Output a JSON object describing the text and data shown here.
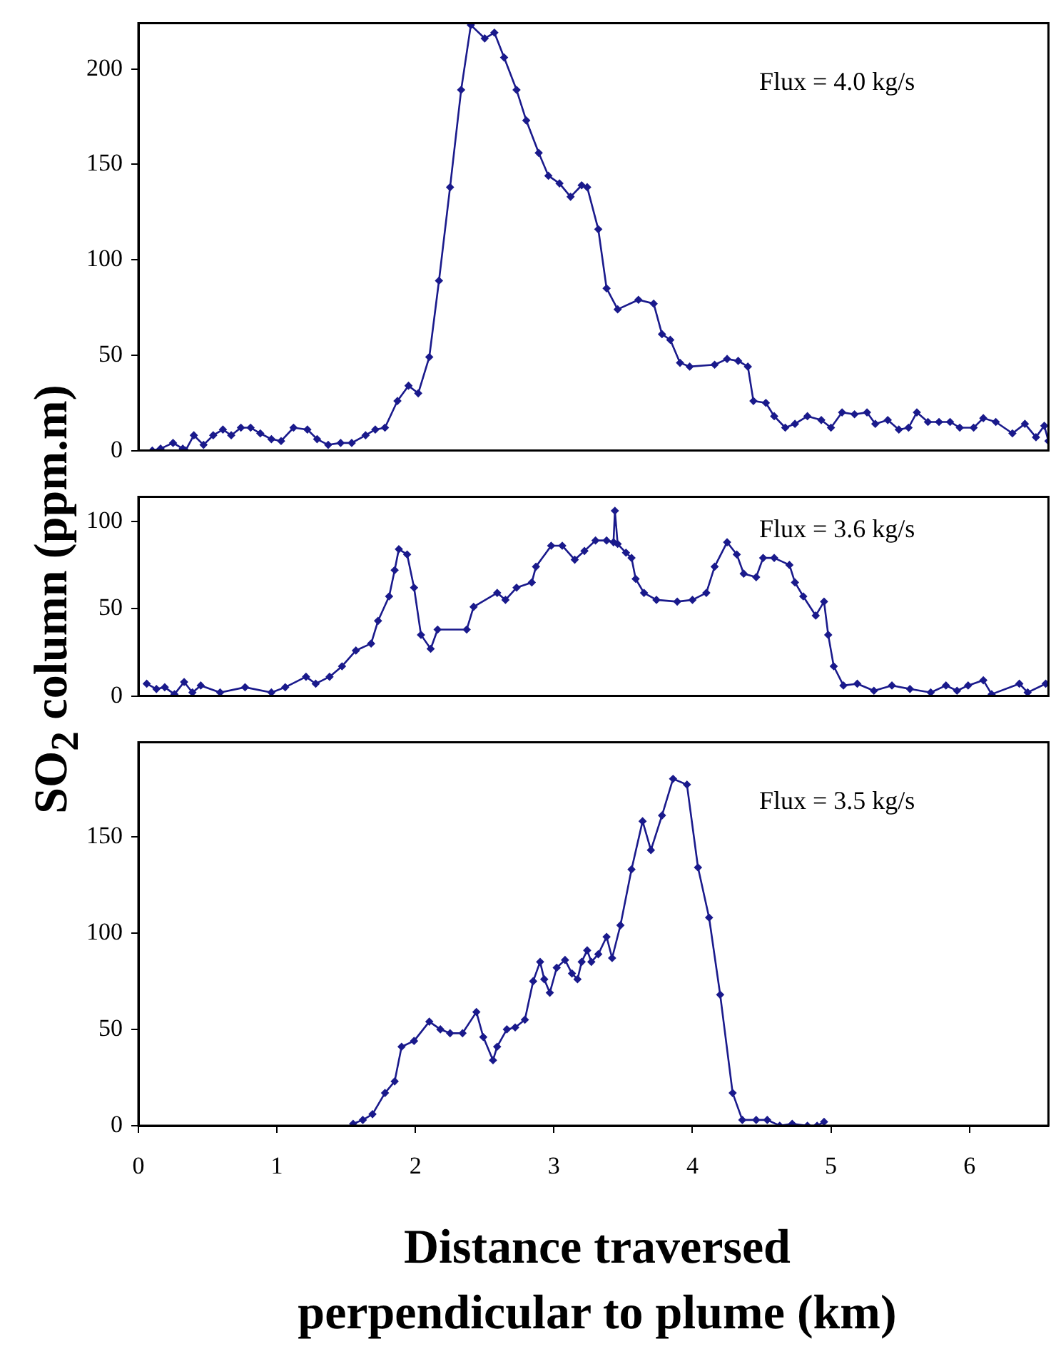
{
  "chart_data": [
    {
      "type": "line",
      "annotations": [
        "Flux = 4.0 kg/s"
      ],
      "marker": "diamond",
      "line_style": "solid",
      "grid": false,
      "tick_labels": "y",
      "xlim": [
        0,
        6.57
      ],
      "xticks": [
        0,
        1,
        2,
        3,
        4,
        5,
        6
      ],
      "ylim": [
        0,
        224
      ],
      "yticks": [
        0,
        50,
        100,
        150,
        200
      ],
      "x": [
        0.1,
        0.16,
        0.25,
        0.32,
        0.34,
        0.4,
        0.47,
        0.54,
        0.61,
        0.67,
        0.74,
        0.81,
        0.88,
        0.96,
        1.03,
        1.12,
        1.22,
        1.29,
        1.37,
        1.46,
        1.54,
        1.64,
        1.71,
        1.78,
        1.87,
        1.95,
        2.02,
        2.1,
        2.17,
        2.25,
        2.33,
        2.4,
        2.5,
        2.57,
        2.64,
        2.73,
        2.8,
        2.89,
        2.96,
        3.04,
        3.12,
        3.2,
        3.24,
        3.32,
        3.38,
        3.46,
        3.61,
        3.72,
        3.78,
        3.84,
        3.91,
        3.98,
        4.16,
        4.25,
        4.33,
        4.4,
        4.44,
        4.53,
        4.59,
        4.67,
        4.74,
        4.83,
        4.93,
        5.0,
        5.08,
        5.17,
        5.26,
        5.32,
        5.41,
        5.49,
        5.56,
        5.62,
        5.7,
        5.78,
        5.86,
        5.93,
        6.03,
        6.1,
        6.19,
        6.31,
        6.4,
        6.48,
        6.54,
        6.57
      ],
      "series": [
        {
          "color": "#1a1a8c",
          "values": [
            0,
            1,
            4,
            1,
            0,
            8,
            3,
            8,
            11,
            8,
            12,
            12,
            9,
            6,
            5,
            12,
            11,
            6,
            3,
            4,
            4,
            8,
            11,
            12,
            26,
            34,
            30,
            49,
            89,
            138,
            189,
            223,
            216,
            219,
            206,
            189,
            173,
            156,
            144,
            140,
            133,
            139,
            138,
            116,
            85,
            74,
            79,
            77,
            61,
            58,
            46,
            44,
            45,
            48,
            47,
            44,
            26,
            25,
            18,
            12,
            14,
            18,
            16,
            12,
            20,
            19,
            20,
            14,
            16,
            11,
            12,
            20,
            15,
            15,
            15,
            12,
            12,
            17,
            15,
            9,
            14,
            7,
            13,
            5
          ]
        }
      ]
    },
    {
      "type": "line",
      "annotations": [
        "Flux = 3.6 kg/s"
      ],
      "ylabel": "SO$_{2}$ column (ppm.m)",
      "marker": "diamond",
      "line_style": "solid",
      "grid": false,
      "tick_labels": "y",
      "xlim": [
        0,
        6.57
      ],
      "xticks": [
        0,
        1,
        2,
        3,
        4,
        5,
        6
      ],
      "ylim": [
        0,
        114
      ],
      "yticks": [
        0,
        50,
        100
      ],
      "x": [
        0.06,
        0.13,
        0.19,
        0.26,
        0.33,
        0.39,
        0.45,
        0.59,
        0.77,
        0.96,
        1.06,
        1.21,
        1.28,
        1.38,
        1.47,
        1.57,
        1.68,
        1.73,
        1.81,
        1.85,
        1.88,
        1.94,
        1.99,
        2.04,
        2.11,
        2.16,
        2.37,
        2.42,
        2.59,
        2.65,
        2.73,
        2.84,
        2.87,
        2.98,
        3.06,
        3.15,
        3.22,
        3.3,
        3.38,
        3.43,
        3.44,
        3.46,
        3.52,
        3.56,
        3.59,
        3.65,
        3.74,
        3.89,
        4.0,
        4.1,
        4.16,
        4.25,
        4.32,
        4.37,
        4.46,
        4.51,
        4.59,
        4.7,
        4.74,
        4.8,
        4.89,
        4.95,
        4.98,
        5.02,
        5.09,
        5.19,
        5.31,
        5.44,
        5.57,
        5.72,
        5.83,
        5.91,
        5.99,
        6.1,
        6.16,
        6.36,
        6.42,
        6.55
      ],
      "series": [
        {
          "color": "#1a1a8c",
          "values": [
            7,
            4,
            5,
            1,
            8,
            2,
            6,
            2,
            5,
            2,
            5,
            11,
            7,
            11,
            17,
            26,
            30,
            43,
            57,
            72,
            84,
            81,
            62,
            35,
            27,
            38,
            38,
            51,
            59,
            55,
            62,
            65,
            74,
            86,
            86,
            78,
            83,
            89,
            89,
            88,
            106,
            87,
            82,
            79,
            67,
            59,
            55,
            54,
            55,
            59,
            74,
            88,
            81,
            70,
            68,
            79,
            79,
            75,
            65,
            57,
            46,
            54,
            35,
            17,
            6,
            7,
            3,
            6,
            4,
            2,
            6,
            3,
            6,
            9,
            1,
            7,
            2,
            7
          ]
        }
      ]
    },
    {
      "type": "line",
      "annotations": [
        "Flux = 3.5 kg/s"
      ],
      "xlabel": "Distance traversed\nperpendicular to plume (km)",
      "marker": "diamond",
      "line_style": "solid",
      "grid": false,
      "xlim": [
        0,
        6.57
      ],
      "xticks": [
        0,
        1,
        2,
        3,
        4,
        5,
        6
      ],
      "ylim": [
        0,
        199
      ],
      "yticks": [
        0,
        50,
        100,
        150
      ],
      "x": [
        1.55,
        1.62,
        1.69,
        1.78,
        1.85,
        1.9,
        1.99,
        2.1,
        2.18,
        2.25,
        2.34,
        2.44,
        2.49,
        2.56,
        2.59,
        2.66,
        2.72,
        2.79,
        2.85,
        2.9,
        2.93,
        2.97,
        3.02,
        3.08,
        3.13,
        3.17,
        3.2,
        3.24,
        3.27,
        3.32,
        3.38,
        3.42,
        3.48,
        3.56,
        3.64,
        3.7,
        3.78,
        3.86,
        3.96,
        4.04,
        4.12,
        4.2,
        4.29,
        4.36,
        4.46,
        4.54,
        4.63,
        4.72,
        4.83,
        4.9,
        4.95
      ],
      "series": [
        {
          "color": "#1a1a8c",
          "values": [
            1,
            3,
            6,
            17,
            23,
            41,
            44,
            54,
            50,
            48,
            48,
            59,
            46,
            34,
            41,
            50,
            51,
            55,
            75,
            85,
            76,
            69,
            82,
            86,
            79,
            76,
            85,
            91,
            85,
            89,
            98,
            87,
            104,
            133,
            158,
            143,
            161,
            180,
            177,
            134,
            108,
            68,
            17,
            3,
            3,
            3,
            0,
            1,
            0,
            0,
            2
          ]
        }
      ]
    }
  ]
}
